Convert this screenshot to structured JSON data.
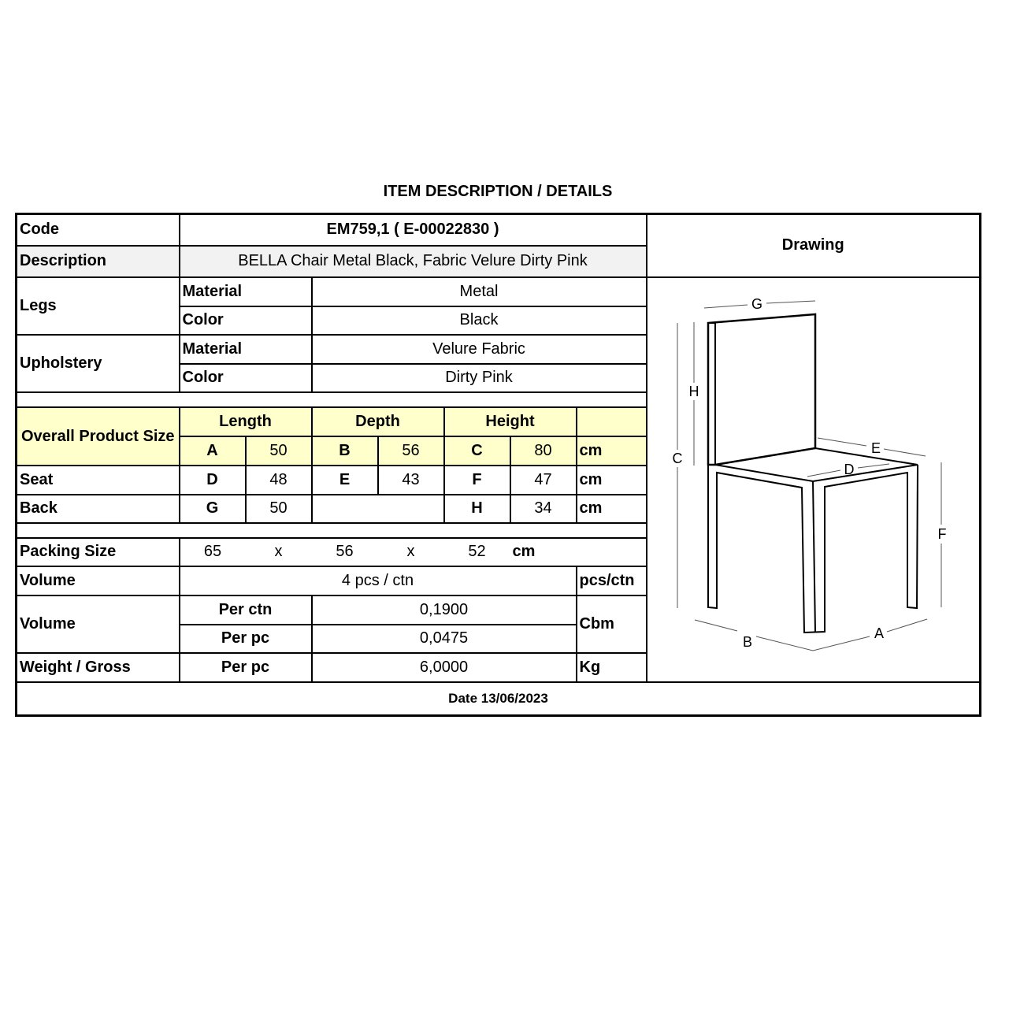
{
  "title": "ITEM DESCRIPTION / DETAILS",
  "code": {
    "label": "Code",
    "value": "EM759,1  ( E-00022830 )"
  },
  "description": {
    "label": "Description",
    "value": "BELLA Chair Metal Black, Fabric Velure Dirty Pink"
  },
  "drawing_label": "Drawing",
  "legs": {
    "label": "Legs",
    "material_label": "Material",
    "material": "Metal",
    "color_label": "Color",
    "color": "Black"
  },
  "upholstery": {
    "label": "Upholstery",
    "material_label": "Material",
    "material": "Velure Fabric",
    "color_label": "Color",
    "color": "Dirty Pink"
  },
  "size": {
    "label": "Overall Product Size",
    "length": "Length",
    "depth": "Depth",
    "height": "Height",
    "overall": [
      "A",
      "50",
      "B",
      "56",
      "C",
      "80",
      "cm"
    ],
    "seat_label": "Seat",
    "seat": [
      "D",
      "48",
      "E",
      "43",
      "F",
      "47",
      "cm"
    ],
    "back_label": "Back",
    "back": [
      "G",
      "50",
      "H",
      "34",
      "cm"
    ]
  },
  "packing": {
    "label": "Packing Size",
    "values": [
      "65",
      "x",
      "56",
      "x",
      "52",
      "cm"
    ]
  },
  "volume_pcs": {
    "label": "Volume",
    "value": "4 pcs / ctn",
    "unit": "pcs/ctn"
  },
  "volume": {
    "label": "Volume",
    "per_ctn_label": "Per ctn",
    "per_ctn": "0,1900",
    "per_pc_label": "Per pc",
    "per_pc": "0,0475",
    "unit": "Cbm"
  },
  "weight": {
    "label": "Weight / Gross",
    "per_pc_label": "Per pc",
    "value": "6,0000",
    "unit": "Kg"
  },
  "date": "Date 13/06/2023",
  "drawing_letters": [
    "A",
    "B",
    "C",
    "D",
    "E",
    "F",
    "G",
    "H"
  ],
  "colors": {
    "header_yellow": "#ffffcc",
    "description_bg": "#f2f2f2"
  }
}
